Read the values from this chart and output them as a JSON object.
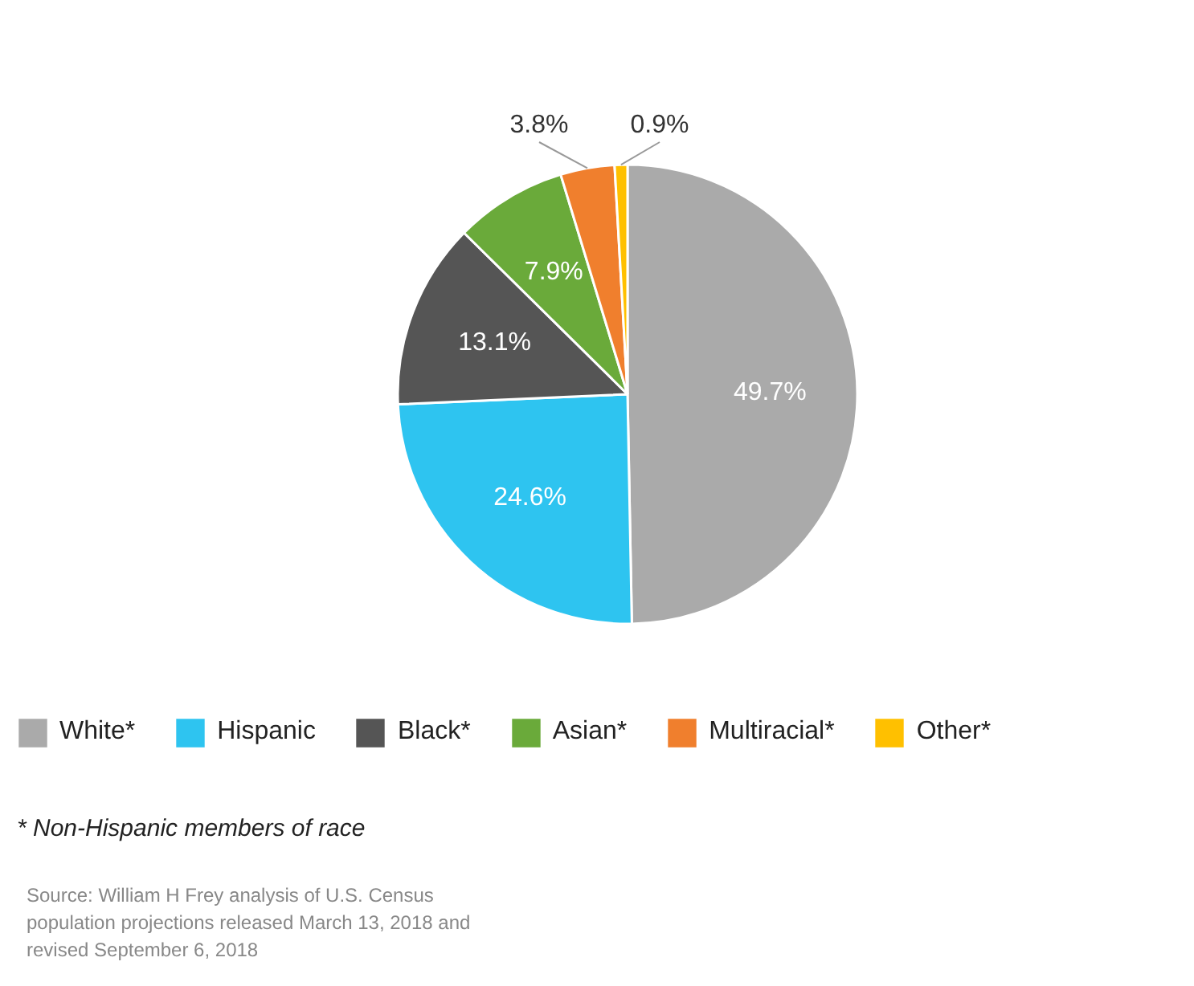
{
  "chart_data": {
    "type": "pie",
    "categories": [
      "White*",
      "Hispanic",
      "Black*",
      "Asian*",
      "Multiracial*",
      "Other*"
    ],
    "values": [
      49.7,
      24.6,
      13.1,
      7.9,
      3.8,
      0.9
    ],
    "colors": [
      "#aaaaaa",
      "#2ec4f0",
      "#555555",
      "#6aaa3a",
      "#f07f2d",
      "#ffc000"
    ],
    "value_labels": [
      "49.7%",
      "24.6%",
      "13.1%",
      "7.9%",
      "3.8%",
      "0.9%"
    ],
    "legend": "bottom",
    "annotations": [
      "* Non-Hispanic members of race",
      "Source: William H Frey analysis of U.S. Census population projections released March 13, 2018 and revised September 6, 2018"
    ]
  }
}
